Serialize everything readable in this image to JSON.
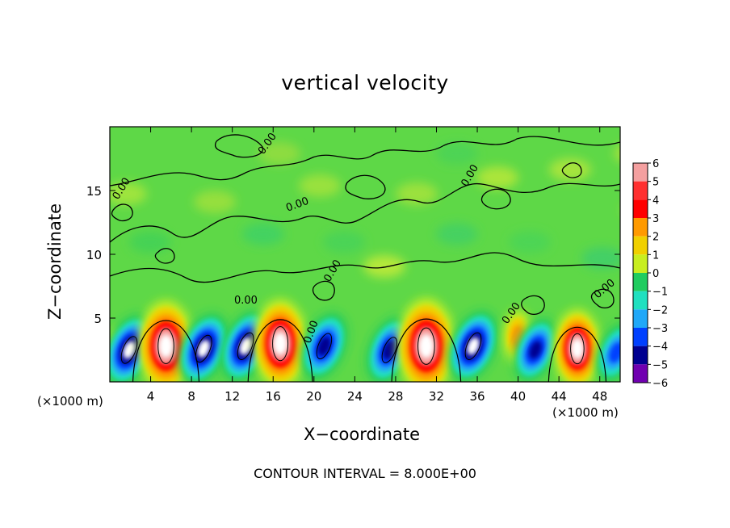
{
  "chart_data": {
    "type": "heatmap",
    "title": "vertical velocity",
    "xlabel": "X−coordinate",
    "ylabel": "Z−coordinate",
    "x_unit_label": "(×1000 m)",
    "xlim": [
      0,
      50
    ],
    "ylim": [
      0,
      20
    ],
    "x_ticks": [
      4,
      8,
      12,
      16,
      20,
      24,
      28,
      32,
      36,
      40,
      44,
      48
    ],
    "y_ticks": [
      5,
      10,
      15
    ],
    "colorbar": {
      "levels": [
        6,
        5,
        4,
        3,
        2,
        1,
        0,
        -1,
        -2,
        -3,
        -4,
        -5,
        -6
      ],
      "labels": [
        "6",
        "5",
        "4",
        "3",
        "2",
        "1",
        "0",
        "−1",
        "−2",
        "−3",
        "−4",
        "−5",
        "−6"
      ],
      "colors": [
        "#f4a0a0",
        "#ff3030",
        "#ff0000",
        "#ff9a00",
        "#f0d000",
        "#c8ee20",
        "#60e040",
        "#20cc60",
        "#20e0c0",
        "#20a8f8",
        "#0040ff",
        "#000090",
        "#7000b0"
      ]
    },
    "background_color": "#5ed847",
    "contour_label": "0.00",
    "contour_interval_text": "CONTOUR INTERVAL = 8.000E+00",
    "cells": [
      {
        "x": 0.5,
        "z": 2.8,
        "w": 0.7
      },
      {
        "x": 1.9,
        "z": 2.5,
        "w": -5.5
      },
      {
        "x": 5.5,
        "z": 2.8,
        "w": 7.5
      },
      {
        "x": 9.2,
        "z": 2.6,
        "w": -5.5
      },
      {
        "x": 13.3,
        "z": 2.8,
        "w": -5.5
      },
      {
        "x": 16.7,
        "z": 3.0,
        "w": 7.2
      },
      {
        "x": 21.0,
        "z": 2.8,
        "w": -5.0
      },
      {
        "x": 27.4,
        "z": 2.5,
        "w": -5.0
      },
      {
        "x": 31.0,
        "z": 2.8,
        "w": 8.0
      },
      {
        "x": 35.6,
        "z": 2.8,
        "w": -5.5
      },
      {
        "x": 40.0,
        "z": 3.5,
        "w": 3.0
      },
      {
        "x": 41.7,
        "z": 2.5,
        "w": -4.5
      },
      {
        "x": 45.8,
        "z": 2.6,
        "w": 6.0
      },
      {
        "x": 49.6,
        "z": 2.3,
        "w": -4.0
      }
    ]
  }
}
